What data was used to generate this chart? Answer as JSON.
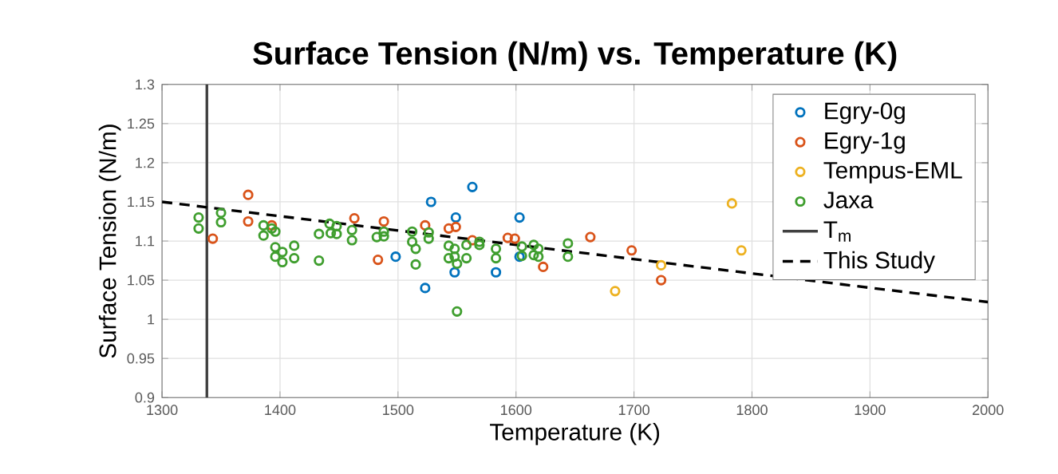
{
  "chart_data": {
    "type": "scatter",
    "title": "Surface Tension (N/m) vs. Temperature (K)",
    "xlabel": "Temperature (K)",
    "ylabel": "Surface Tension (N/m)",
    "xlim": [
      1300,
      2000
    ],
    "ylim": [
      0.9,
      1.3
    ],
    "xticks": [
      1300,
      1400,
      1500,
      1600,
      1700,
      1800,
      1900,
      2000
    ],
    "yticks": [
      0.9,
      0.95,
      1,
      1.05,
      1.1,
      1.15,
      1.2,
      1.25,
      1.3
    ],
    "grid": true,
    "legend": "top right",
    "marker": "circle",
    "series": [
      {
        "name": "Egry-0g",
        "color": "#0072bd",
        "x": [
          1528,
          1563,
          1549,
          1498,
          1523,
          1548,
          1583,
          1603,
          1603
        ],
        "values": [
          1.15,
          1.169,
          1.13,
          1.08,
          1.04,
          1.06,
          1.06,
          1.13,
          1.08
        ]
      },
      {
        "name": "Egry-1g",
        "color": "#d95319",
        "x": [
          1373,
          1373,
          1343,
          1393,
          1463,
          1488,
          1483,
          1523,
          1543,
          1549,
          1563,
          1593,
          1599,
          1623,
          1663,
          1698,
          1723
        ],
        "values": [
          1.159,
          1.125,
          1.103,
          1.12,
          1.129,
          1.125,
          1.076,
          1.12,
          1.116,
          1.118,
          1.101,
          1.104,
          1.103,
          1.067,
          1.105,
          1.088,
          1.05
        ]
      },
      {
        "name": "Tempus-EML",
        "color": "#edb120",
        "x": [
          1723,
          1684,
          1783,
          1791
        ],
        "values": [
          1.069,
          1.036,
          1.148,
          1.088
        ]
      },
      {
        "name": "Jaxa",
        "color": "#3f9e2e",
        "x": [
          1331,
          1331,
          1350,
          1350,
          1386,
          1386,
          1393,
          1396,
          1396,
          1396,
          1402,
          1402,
          1412,
          1412,
          1433,
          1433,
          1442,
          1443,
          1448,
          1448,
          1461,
          1461,
          1482,
          1488,
          1488,
          1512,
          1512,
          1515,
          1515,
          1526,
          1526,
          1543,
          1543,
          1548,
          1548,
          1550,
          1550,
          1558,
          1558,
          1569,
          1569,
          1583,
          1583,
          1605,
          1605,
          1615,
          1615,
          1619,
          1619,
          1644,
          1644
        ],
        "values": [
          1.13,
          1.116,
          1.136,
          1.124,
          1.12,
          1.107,
          1.116,
          1.112,
          1.092,
          1.08,
          1.086,
          1.073,
          1.094,
          1.078,
          1.109,
          1.075,
          1.122,
          1.11,
          1.119,
          1.109,
          1.114,
          1.101,
          1.105,
          1.106,
          1.112,
          1.112,
          1.099,
          1.09,
          1.07,
          1.111,
          1.103,
          1.094,
          1.078,
          1.09,
          1.08,
          1.071,
          1.01,
          1.078,
          1.095,
          1.099,
          1.095,
          1.09,
          1.078,
          1.093,
          1.081,
          1.095,
          1.082,
          1.09,
          1.08,
          1.097,
          1.08
        ]
      },
      {
        "name": "T$_{m}$",
        "type": "line",
        "color": "#404040",
        "line_style": "solid",
        "marker": "none",
        "x": [
          1338,
          1338
        ],
        "values": [
          0.9,
          1.3
        ]
      },
      {
        "name": "This Study",
        "type": "line",
        "color": "#000000",
        "line_style": "dashed",
        "marker": "none",
        "x": [
          1300,
          2000
        ],
        "values": [
          1.15,
          1.022
        ]
      }
    ]
  }
}
